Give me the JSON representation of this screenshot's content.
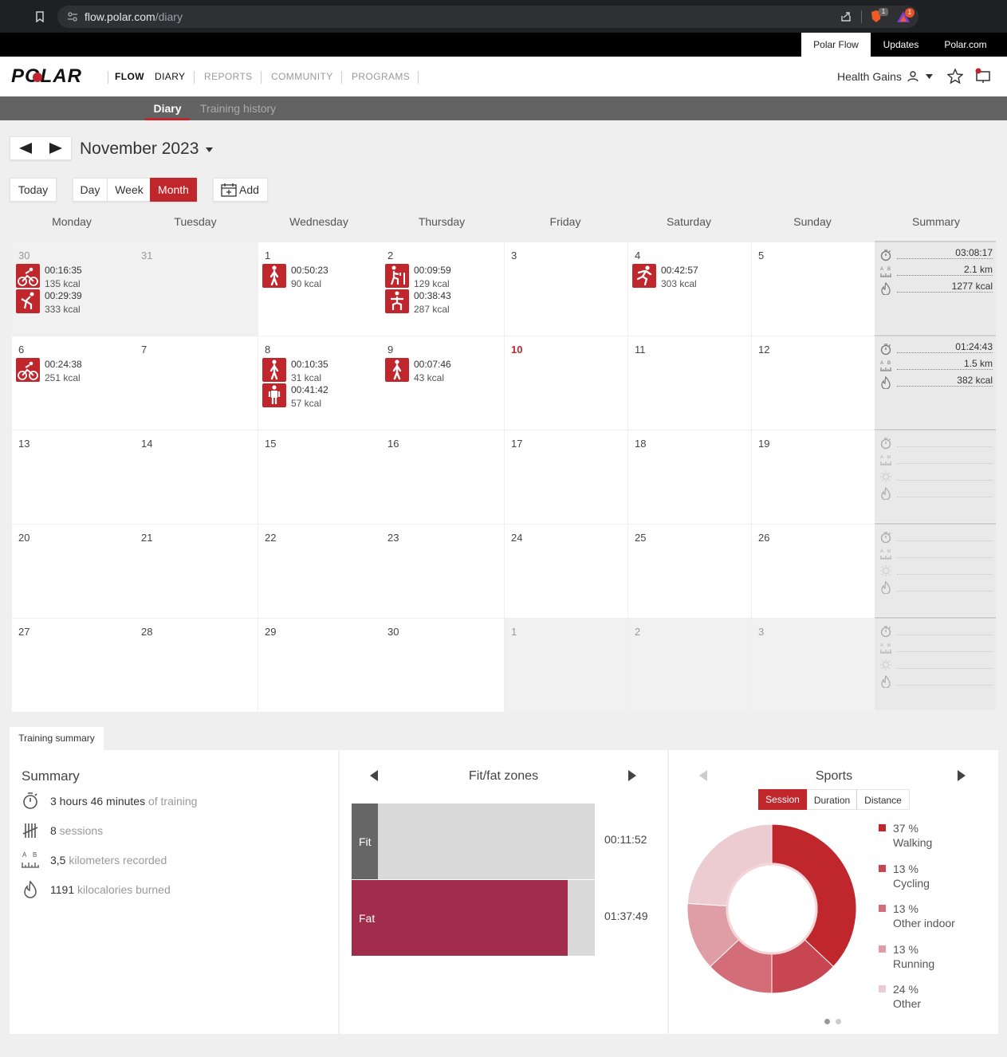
{
  "browser": {
    "url_host": "flow.polar.com",
    "url_path": "/diary"
  },
  "topbar": {
    "links": [
      "Polar Flow",
      "Updates",
      "Polar.com"
    ]
  },
  "nav": {
    "logo": "POLAR",
    "flow": "FLOW",
    "items": [
      "DIARY",
      "REPORTS",
      "COMMUNITY",
      "PROGRAMS"
    ],
    "user": "Health Gains"
  },
  "subnav": {
    "items": [
      "Diary",
      "Training history"
    ]
  },
  "calendar": {
    "month_label": "November 2023",
    "today_button": "Today",
    "views": [
      "Day",
      "Week",
      "Month"
    ],
    "add_button": "Add",
    "day_headers": [
      "Monday",
      "Tuesday",
      "Wednesday",
      "Thursday",
      "Friday",
      "Saturday",
      "Sunday",
      "Summary"
    ],
    "weeks": [
      {
        "days": [
          {
            "num": "30",
            "muted": true,
            "grey": true,
            "entries": [
              {
                "icon": "cycling-icon",
                "time": "00:16:35",
                "kcal": "135 kcal"
              },
              {
                "icon": "other-indoor-icon",
                "time": "00:29:39",
                "kcal": "333 kcal"
              }
            ]
          },
          {
            "num": "31",
            "muted": true,
            "grey": true,
            "entries": []
          },
          {
            "num": "1",
            "entries": [
              {
                "icon": "walking-icon",
                "time": "00:50:23",
                "kcal": "90 kcal"
              }
            ]
          },
          {
            "num": "2",
            "entries": [
              {
                "icon": "strength-icon",
                "time": "00:09:59",
                "kcal": "129 kcal"
              },
              {
                "icon": "core-icon",
                "time": "00:38:43",
                "kcal": "287 kcal"
              }
            ]
          },
          {
            "num": "3",
            "entries": []
          },
          {
            "num": "4",
            "entries": [
              {
                "icon": "running-icon",
                "time": "00:42:57",
                "kcal": "303 kcal"
              }
            ]
          },
          {
            "num": "5",
            "entries": []
          }
        ],
        "summary": {
          "duration": "03:08:17",
          "distance": "2.1 km",
          "kcal": "1277 kcal"
        }
      },
      {
        "days": [
          {
            "num": "6",
            "entries": [
              {
                "icon": "cycling-icon",
                "time": "00:24:38",
                "kcal": "251 kcal"
              }
            ]
          },
          {
            "num": "7",
            "entries": []
          },
          {
            "num": "8",
            "entries": [
              {
                "icon": "walking-icon",
                "time": "00:10:35",
                "kcal": "31 kcal"
              },
              {
                "icon": "other-icon",
                "time": "00:41:42",
                "kcal": "57 kcal"
              }
            ]
          },
          {
            "num": "9",
            "entries": [
              {
                "icon": "walking-icon",
                "time": "00:07:46",
                "kcal": "43 kcal"
              }
            ]
          },
          {
            "num": "10",
            "today": true,
            "entries": []
          },
          {
            "num": "11",
            "entries": []
          },
          {
            "num": "12",
            "entries": []
          }
        ],
        "summary": {
          "duration": "01:24:43",
          "distance": "1.5 km",
          "kcal": "382 kcal"
        }
      },
      {
        "days": [
          {
            "num": "13"
          },
          {
            "num": "14"
          },
          {
            "num": "15"
          },
          {
            "num": "16"
          },
          {
            "num": "17"
          },
          {
            "num": "18"
          },
          {
            "num": "19"
          }
        ],
        "summary": null
      },
      {
        "days": [
          {
            "num": "20"
          },
          {
            "num": "21"
          },
          {
            "num": "22"
          },
          {
            "num": "23"
          },
          {
            "num": "24"
          },
          {
            "num": "25"
          },
          {
            "num": "26"
          }
        ],
        "summary": null
      },
      {
        "days": [
          {
            "num": "27"
          },
          {
            "num": "28"
          },
          {
            "num": "29"
          },
          {
            "num": "30"
          },
          {
            "num": "1",
            "muted": true,
            "grey": true
          },
          {
            "num": "2",
            "muted": true,
            "grey": true
          },
          {
            "num": "3",
            "muted": true,
            "grey": true
          }
        ],
        "summary": null
      }
    ]
  },
  "training_summary": {
    "tab": "Training summary",
    "title": "Summary",
    "lines": [
      {
        "icon": "stopwatch-icon",
        "value": "3 hours 46 minutes",
        "suffix": " of training"
      },
      {
        "icon": "tally-icon",
        "value": "8",
        "suffix": " sessions"
      },
      {
        "icon": "ruler-icon",
        "value": "3,5",
        "suffix": " kilometers recorded"
      },
      {
        "icon": "flame-icon",
        "value": "1191",
        "suffix": " kilocalories burned"
      }
    ]
  },
  "fitfat": {
    "title": "Fit/fat zones",
    "rows": [
      {
        "label": "Fit",
        "time": "00:11:52",
        "fraction": 0.107,
        "color": "#666666"
      },
      {
        "label": "Fat",
        "time": "01:37:49",
        "fraction": 0.89,
        "color": "#a22c4b"
      }
    ]
  },
  "sports": {
    "title": "Sports",
    "tabs": [
      "Session",
      "Duration",
      "Distance"
    ],
    "legend": [
      {
        "pct": "37 %",
        "name": "Walking",
        "value": 37,
        "color": "#c0272d"
      },
      {
        "pct": "13 %",
        "name": "Cycling",
        "value": 13,
        "color": "#c84552"
      },
      {
        "pct": "13 %",
        "name": "Other indoor",
        "value": 13,
        "color": "#d36d78"
      },
      {
        "pct": "13 %",
        "name": "Running",
        "value": 13,
        "color": "#df9ea6"
      },
      {
        "pct": "24 %",
        "name": "Other",
        "value": 24,
        "color": "#ecccd0"
      }
    ]
  },
  "colors": {
    "accent": "#c0272d"
  }
}
